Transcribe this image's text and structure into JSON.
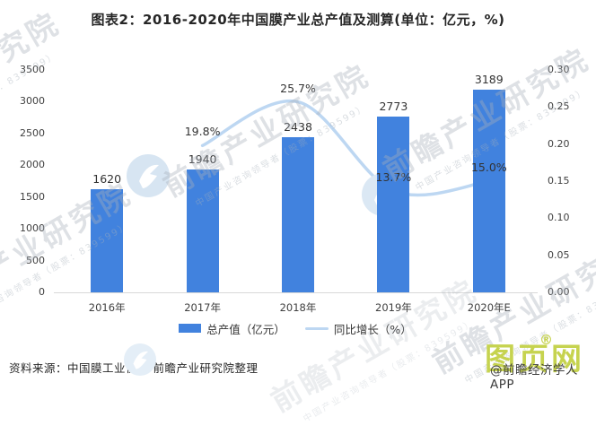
{
  "title": "图表2：2016-2020年中国膜产业总产值及测算(单位：亿元，%)",
  "chart_data": {
    "type": "bar",
    "title": "图表2：2016-2020年中国膜产业总产值及测算(单位：亿元，%)",
    "categories": [
      "2016年",
      "2017年",
      "2018年",
      "2019年",
      "2020年E"
    ],
    "series": [
      {
        "name": "总产值（亿元）",
        "kind": "bar",
        "axis": "left",
        "values": [
          1620,
          1940,
          2438,
          2773,
          3189
        ],
        "labels": [
          "1620",
          "1940",
          "2438",
          "2773",
          "3189"
        ],
        "color": "#4182DE"
      },
      {
        "name": "同比增长（%）",
        "kind": "line",
        "axis": "right",
        "values": [
          null,
          0.198,
          0.257,
          0.137,
          0.15
        ],
        "labels": [
          null,
          "19.8%",
          "25.7%",
          "13.7%",
          "15.0%"
        ],
        "color": "#BDD7F2"
      }
    ],
    "left_axis": {
      "min": 0,
      "max": 3500,
      "step": 500,
      "ticks": [
        "0",
        "500",
        "1000",
        "1500",
        "2000",
        "2500",
        "3000",
        "3500"
      ]
    },
    "right_axis": {
      "min": 0.0,
      "max": 0.3,
      "step": 0.05,
      "ticks": [
        "0.00",
        "0.05",
        "0.10",
        "0.15",
        "0.20",
        "0.25",
        "0.30"
      ]
    },
    "grid": false,
    "legend_position": "bottom"
  },
  "source_note": "资料来源：中国膜工业协会 前瞻产业研究院整理",
  "watermark": {
    "brand_text": "前瞻产业研究院",
    "sub_text": "中国产业咨询领导者（股票：839599）"
  },
  "logo": {
    "text": "图页网",
    "registered_mark": "®",
    "overlay_text": "@前瞻经济学人APP",
    "color": "#C6D34F"
  },
  "colors": {
    "bar": "#4182DE",
    "line": "#BDD7F2",
    "axis_line": "#d9d9d9",
    "watermark_blue": "#d7e5f2"
  }
}
